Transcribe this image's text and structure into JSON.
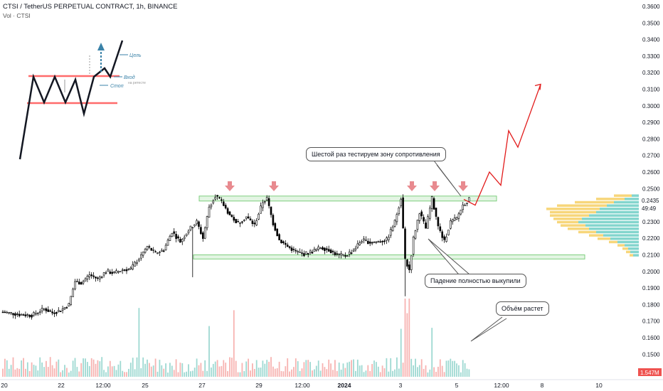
{
  "header": {
    "title": "CTSI / TetherUS PERPETUAL CONTRACT, 1h, BINANCE",
    "volume_label": "Vol · CTSI"
  },
  "annotations": {
    "resistance": "Шестой раз тестируем зону сопротивления",
    "bought": "Падение полностью выкупили",
    "volume": "Объём растет"
  },
  "inset": {
    "target": "Цель",
    "entry": "Вход",
    "entry_sub": "на ретесте",
    "stop": "Стоп"
  },
  "price_badge": {
    "price": "0.2435",
    "timer": "49:49"
  },
  "volume_badge": "1.547M",
  "colors": {
    "up": "#26a69a",
    "down": "#ef5350",
    "candle": "#000000",
    "zone_fill": "#e3f5e3",
    "zone_stroke": "#7fcf7f",
    "arrow": "#e88a8f",
    "projection": "#e21b1b",
    "vp_up": "#4fc3b8",
    "vp_down": "#f4c542"
  },
  "chart_data": {
    "type": "candlestick",
    "symbol": "CTSI / TetherUS PERPETUAL CONTRACT",
    "timeframe": "1h",
    "exchange": "BINANCE",
    "y_ticks": [
      "0.3600",
      "0.3500",
      "0.3400",
      "0.3300",
      "0.3200",
      "0.3100",
      "0.3000",
      "0.2900",
      "0.2800",
      "0.2700",
      "0.2600",
      "0.2500",
      "0.2300",
      "0.2200",
      "0.2100",
      "0.2000",
      "0.1900",
      "0.1800",
      "0.1700",
      "0.1600",
      "0.1500"
    ],
    "x_ticks": [
      "20",
      "22",
      "12:00",
      "25",
      "27",
      "29",
      "12:00",
      "2024",
      "3",
      "5",
      "12:00",
      "8",
      "10"
    ],
    "ylim": [
      0.143,
      0.363
    ],
    "last_price": 0.2435,
    "resistance_zone": [
      0.2425,
      0.2455
    ],
    "support_zone": [
      0.2075,
      0.21
    ],
    "price_path": [
      {
        "t": 0,
        "p": 0.1755
      },
      {
        "t": 8,
        "p": 0.174
      },
      {
        "t": 14,
        "p": 0.1735
      },
      {
        "t": 20,
        "p": 0.1775
      },
      {
        "t": 24,
        "p": 0.175
      },
      {
        "t": 28,
        "p": 0.1765
      },
      {
        "t": 32,
        "p": 0.18
      },
      {
        "t": 35,
        "p": 0.194
      },
      {
        "t": 38,
        "p": 0.193
      },
      {
        "t": 42,
        "p": 0.198
      },
      {
        "t": 46,
        "p": 0.1955
      },
      {
        "t": 50,
        "p": 0.2
      },
      {
        "t": 54,
        "p": 0.199
      },
      {
        "t": 58,
        "p": 0.201
      },
      {
        "t": 62,
        "p": 0.2015
      },
      {
        "t": 66,
        "p": 0.208
      },
      {
        "t": 70,
        "p": 0.215
      },
      {
        "t": 74,
        "p": 0.211
      },
      {
        "t": 78,
        "p": 0.213
      },
      {
        "t": 82,
        "p": 0.224
      },
      {
        "t": 86,
        "p": 0.218
      },
      {
        "t": 90,
        "p": 0.225
      },
      {
        "t": 94,
        "p": 0.23
      },
      {
        "t": 97,
        "p": 0.22
      },
      {
        "t": 100,
        "p": 0.239
      },
      {
        "t": 103,
        "p": 0.246
      },
      {
        "t": 106,
        "p": 0.242
      },
      {
        "t": 110,
        "p": 0.234
      },
      {
        "t": 114,
        "p": 0.229
      },
      {
        "t": 118,
        "p": 0.233
      },
      {
        "t": 122,
        "p": 0.228
      },
      {
        "t": 126,
        "p": 0.242
      },
      {
        "t": 128,
        "p": 0.244
      },
      {
        "t": 131,
        "p": 0.229
      },
      {
        "t": 134,
        "p": 0.219
      },
      {
        "t": 138,
        "p": 0.215
      },
      {
        "t": 142,
        "p": 0.212
      },
      {
        "t": 146,
        "p": 0.2105
      },
      {
        "t": 150,
        "p": 0.212
      },
      {
        "t": 154,
        "p": 0.2145
      },
      {
        "t": 158,
        "p": 0.213
      },
      {
        "t": 162,
        "p": 0.21
      },
      {
        "t": 166,
        "p": 0.2095
      },
      {
        "t": 170,
        "p": 0.213
      },
      {
        "t": 174,
        "p": 0.219
      },
      {
        "t": 178,
        "p": 0.2175
      },
      {
        "t": 182,
        "p": 0.218
      },
      {
        "t": 186,
        "p": 0.219
      },
      {
        "t": 190,
        "p": 0.23
      },
      {
        "t": 193,
        "p": 0.2445
      },
      {
        "t": 195,
        "p": 0.207
      },
      {
        "t": 197,
        "p": 0.201
      },
      {
        "t": 199,
        "p": 0.22
      },
      {
        "t": 202,
        "p": 0.236
      },
      {
        "t": 205,
        "p": 0.226
      },
      {
        "t": 208,
        "p": 0.244
      },
      {
        "t": 211,
        "p": 0.227
      },
      {
        "t": 214,
        "p": 0.218
      },
      {
        "t": 217,
        "p": 0.23
      },
      {
        "t": 220,
        "p": 0.232
      },
      {
        "t": 223,
        "p": 0.24
      },
      {
        "t": 226,
        "p": 0.2435
      }
    ],
    "projection": [
      0.2435,
      0.24,
      0.26,
      0.252,
      0.285,
      0.275,
      0.313
    ],
    "volume_up_last": "1.547M"
  }
}
